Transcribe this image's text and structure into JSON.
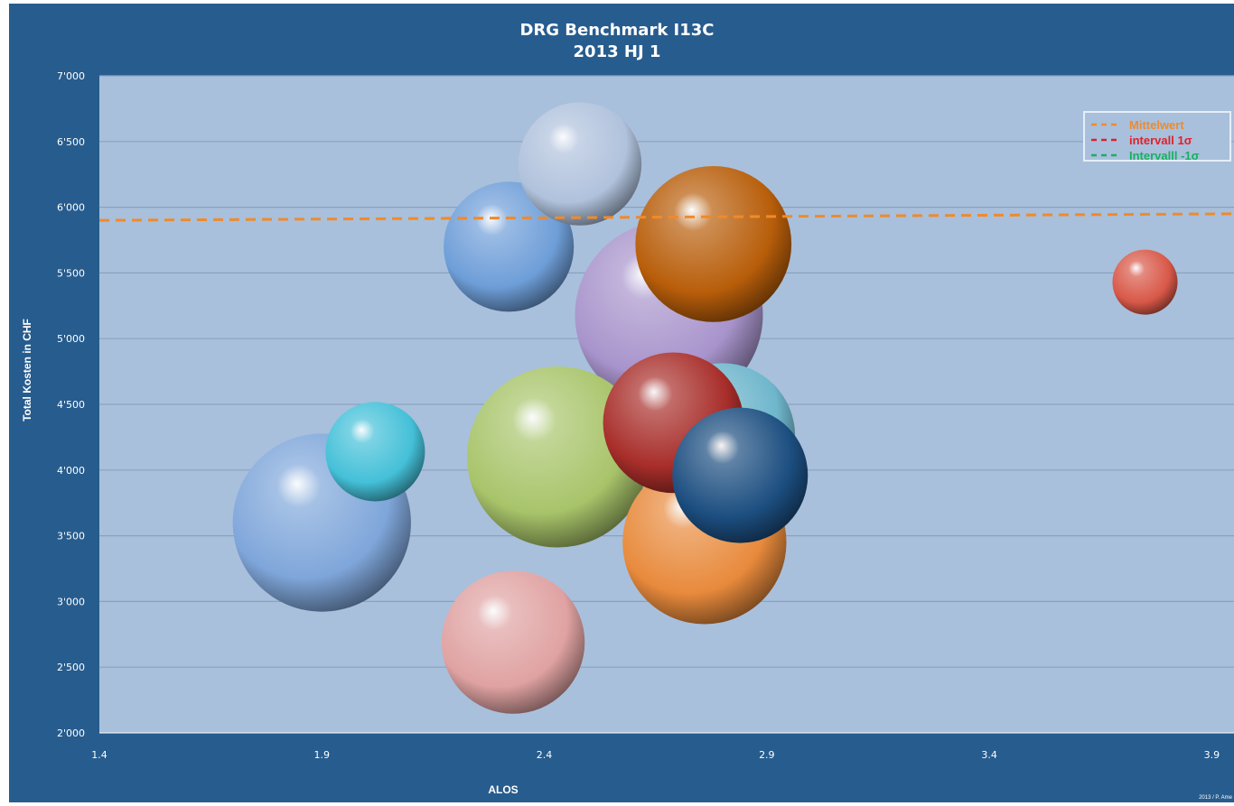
{
  "chart_data": {
    "type": "bubble",
    "title_lines": [
      "DRG Benchmark I13C",
      "2013 HJ 1"
    ],
    "xlabel": "ALOS",
    "ylabel": "Total Kosten in CHF",
    "xlim": [
      1.4,
      3.95
    ],
    "ylim": [
      2000,
      7000
    ],
    "x_ticks": [
      1.4,
      1.9,
      2.4,
      2.9,
      3.4,
      3.9
    ],
    "x_tick_labels": [
      "1.4",
      "1.9",
      "2.4",
      "2.9",
      "3.4",
      "3.9"
    ],
    "y_ticks": [
      2000,
      2500,
      3000,
      3500,
      4000,
      4500,
      5000,
      5500,
      6000,
      6500,
      7000
    ],
    "y_tick_labels": [
      "2'000",
      "2'500",
      "3'000",
      "3'500",
      "4'000",
      "4'500",
      "5'000",
      "5'500",
      "6'000",
      "6'500",
      "7'000"
    ],
    "grid": "horizontal",
    "legend_position": "top-right",
    "legend": [
      {
        "label": "Mittelwert",
        "color": "#f08a2a"
      },
      {
        "label": "intervall 1σ",
        "color": "#e0202a"
      },
      {
        "label": "Intervalll -1σ",
        "color": "#18b060"
      }
    ],
    "mean_line": {
      "y_start": 5900,
      "y_end": 5950,
      "color": "#f08a2a"
    },
    "bubbles": [
      {
        "x": 2.68,
        "y": 5180,
        "size": 1.0,
        "color": "#a894cc"
      },
      {
        "x": 1.9,
        "y": 3600,
        "size": 0.9,
        "color": "#7fa6da"
      },
      {
        "x": 2.43,
        "y": 4100,
        "size": 0.93,
        "color": "#a8c46a"
      },
      {
        "x": 2.76,
        "y": 3450,
        "size": 0.76,
        "color": "#e88a3c"
      },
      {
        "x": 2.78,
        "y": 5720,
        "size": 0.69,
        "color": "#b85e0a"
      },
      {
        "x": 2.8,
        "y": 4260,
        "size": 0.6,
        "color": "#6fb6cc"
      },
      {
        "x": 2.69,
        "y": 4360,
        "size": 0.56,
        "color": "#a82e2a"
      },
      {
        "x": 2.33,
        "y": 2690,
        "size": 0.58,
        "color": "#e0a2a2"
      },
      {
        "x": 2.84,
        "y": 3960,
        "size": 0.52,
        "color": "#1c4e80"
      },
      {
        "x": 2.32,
        "y": 5700,
        "size": 0.48,
        "color": "#6e9ed8"
      },
      {
        "x": 2.48,
        "y": 6330,
        "size": 0.43,
        "color": "#b0c2dc"
      },
      {
        "x": 2.02,
        "y": 4140,
        "size": 0.28,
        "color": "#44c0d8"
      },
      {
        "x": 3.75,
        "y": 5430,
        "size": 0.12,
        "color": "#d85848"
      }
    ]
  },
  "footer": {
    "copyright": "2013 / P. Ame"
  }
}
